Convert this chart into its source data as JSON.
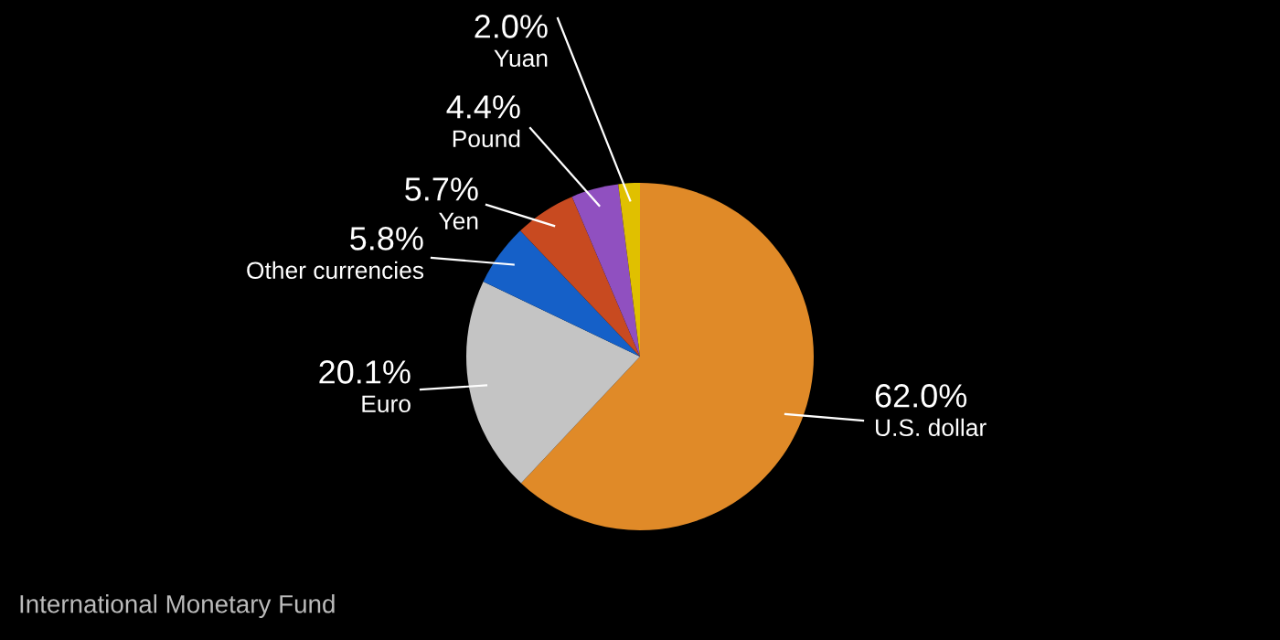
{
  "chart_data": {
    "type": "pie",
    "categories": [
      "U.S. dollar",
      "Euro",
      "Other currencies",
      "Yen",
      "Pound",
      "Yuan"
    ],
    "values": [
      62.0,
      20.1,
      5.8,
      5.7,
      4.4,
      2.0
    ],
    "value_labels": [
      "62.0%",
      "20.1%",
      "5.8%",
      "5.7%",
      "4.4%",
      "2.0%"
    ],
    "colors": [
      "#e08a28",
      "#c4c4c4",
      "#1560c8",
      "#c84a20",
      "#9050c0",
      "#e0c000"
    ],
    "annotations": [
      "International Monetary Fund"
    ]
  }
}
